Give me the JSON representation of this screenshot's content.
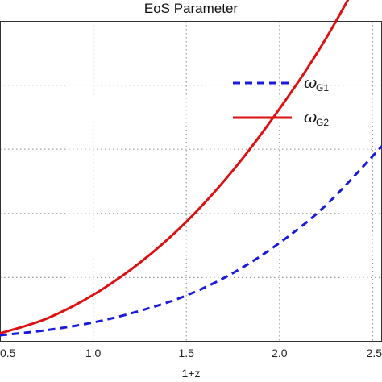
{
  "chart_data": {
    "type": "line",
    "title": "EoS Parameter",
    "xlabel": "1+z",
    "ylabel": "",
    "xlim": [
      0.5,
      2.55
    ],
    "ylim": [
      0,
      5
    ],
    "xticks": [
      0.5,
      1.0,
      1.5,
      2.0,
      2.5
    ],
    "xtick_labels": [
      "0.5",
      "1.0",
      "1.5",
      "2.0",
      "2.5"
    ],
    "grid": true,
    "legend_position": "top-right",
    "series": [
      {
        "legend_symbol": "ω",
        "legend_subscript": "G1",
        "color": "#1a1adf",
        "style": "dashed",
        "x": [
          0.5,
          0.75,
          1.0,
          1.25,
          1.5,
          1.75,
          2.0,
          2.25,
          2.55
        ],
        "y": [
          0.1,
          0.18,
          0.3,
          0.48,
          0.72,
          1.07,
          1.54,
          2.13,
          3.05
        ]
      },
      {
        "legend_symbol": "ω",
        "legend_subscript": "G2",
        "color": "#dd1111",
        "style": "solid",
        "x": [
          0.5,
          0.75,
          1.0,
          1.25,
          1.5,
          1.75,
          2.0,
          2.25,
          2.55
        ],
        "y": [
          0.13,
          0.36,
          0.73,
          1.23,
          1.87,
          2.67,
          3.63,
          4.73,
          6.3
        ]
      }
    ]
  }
}
